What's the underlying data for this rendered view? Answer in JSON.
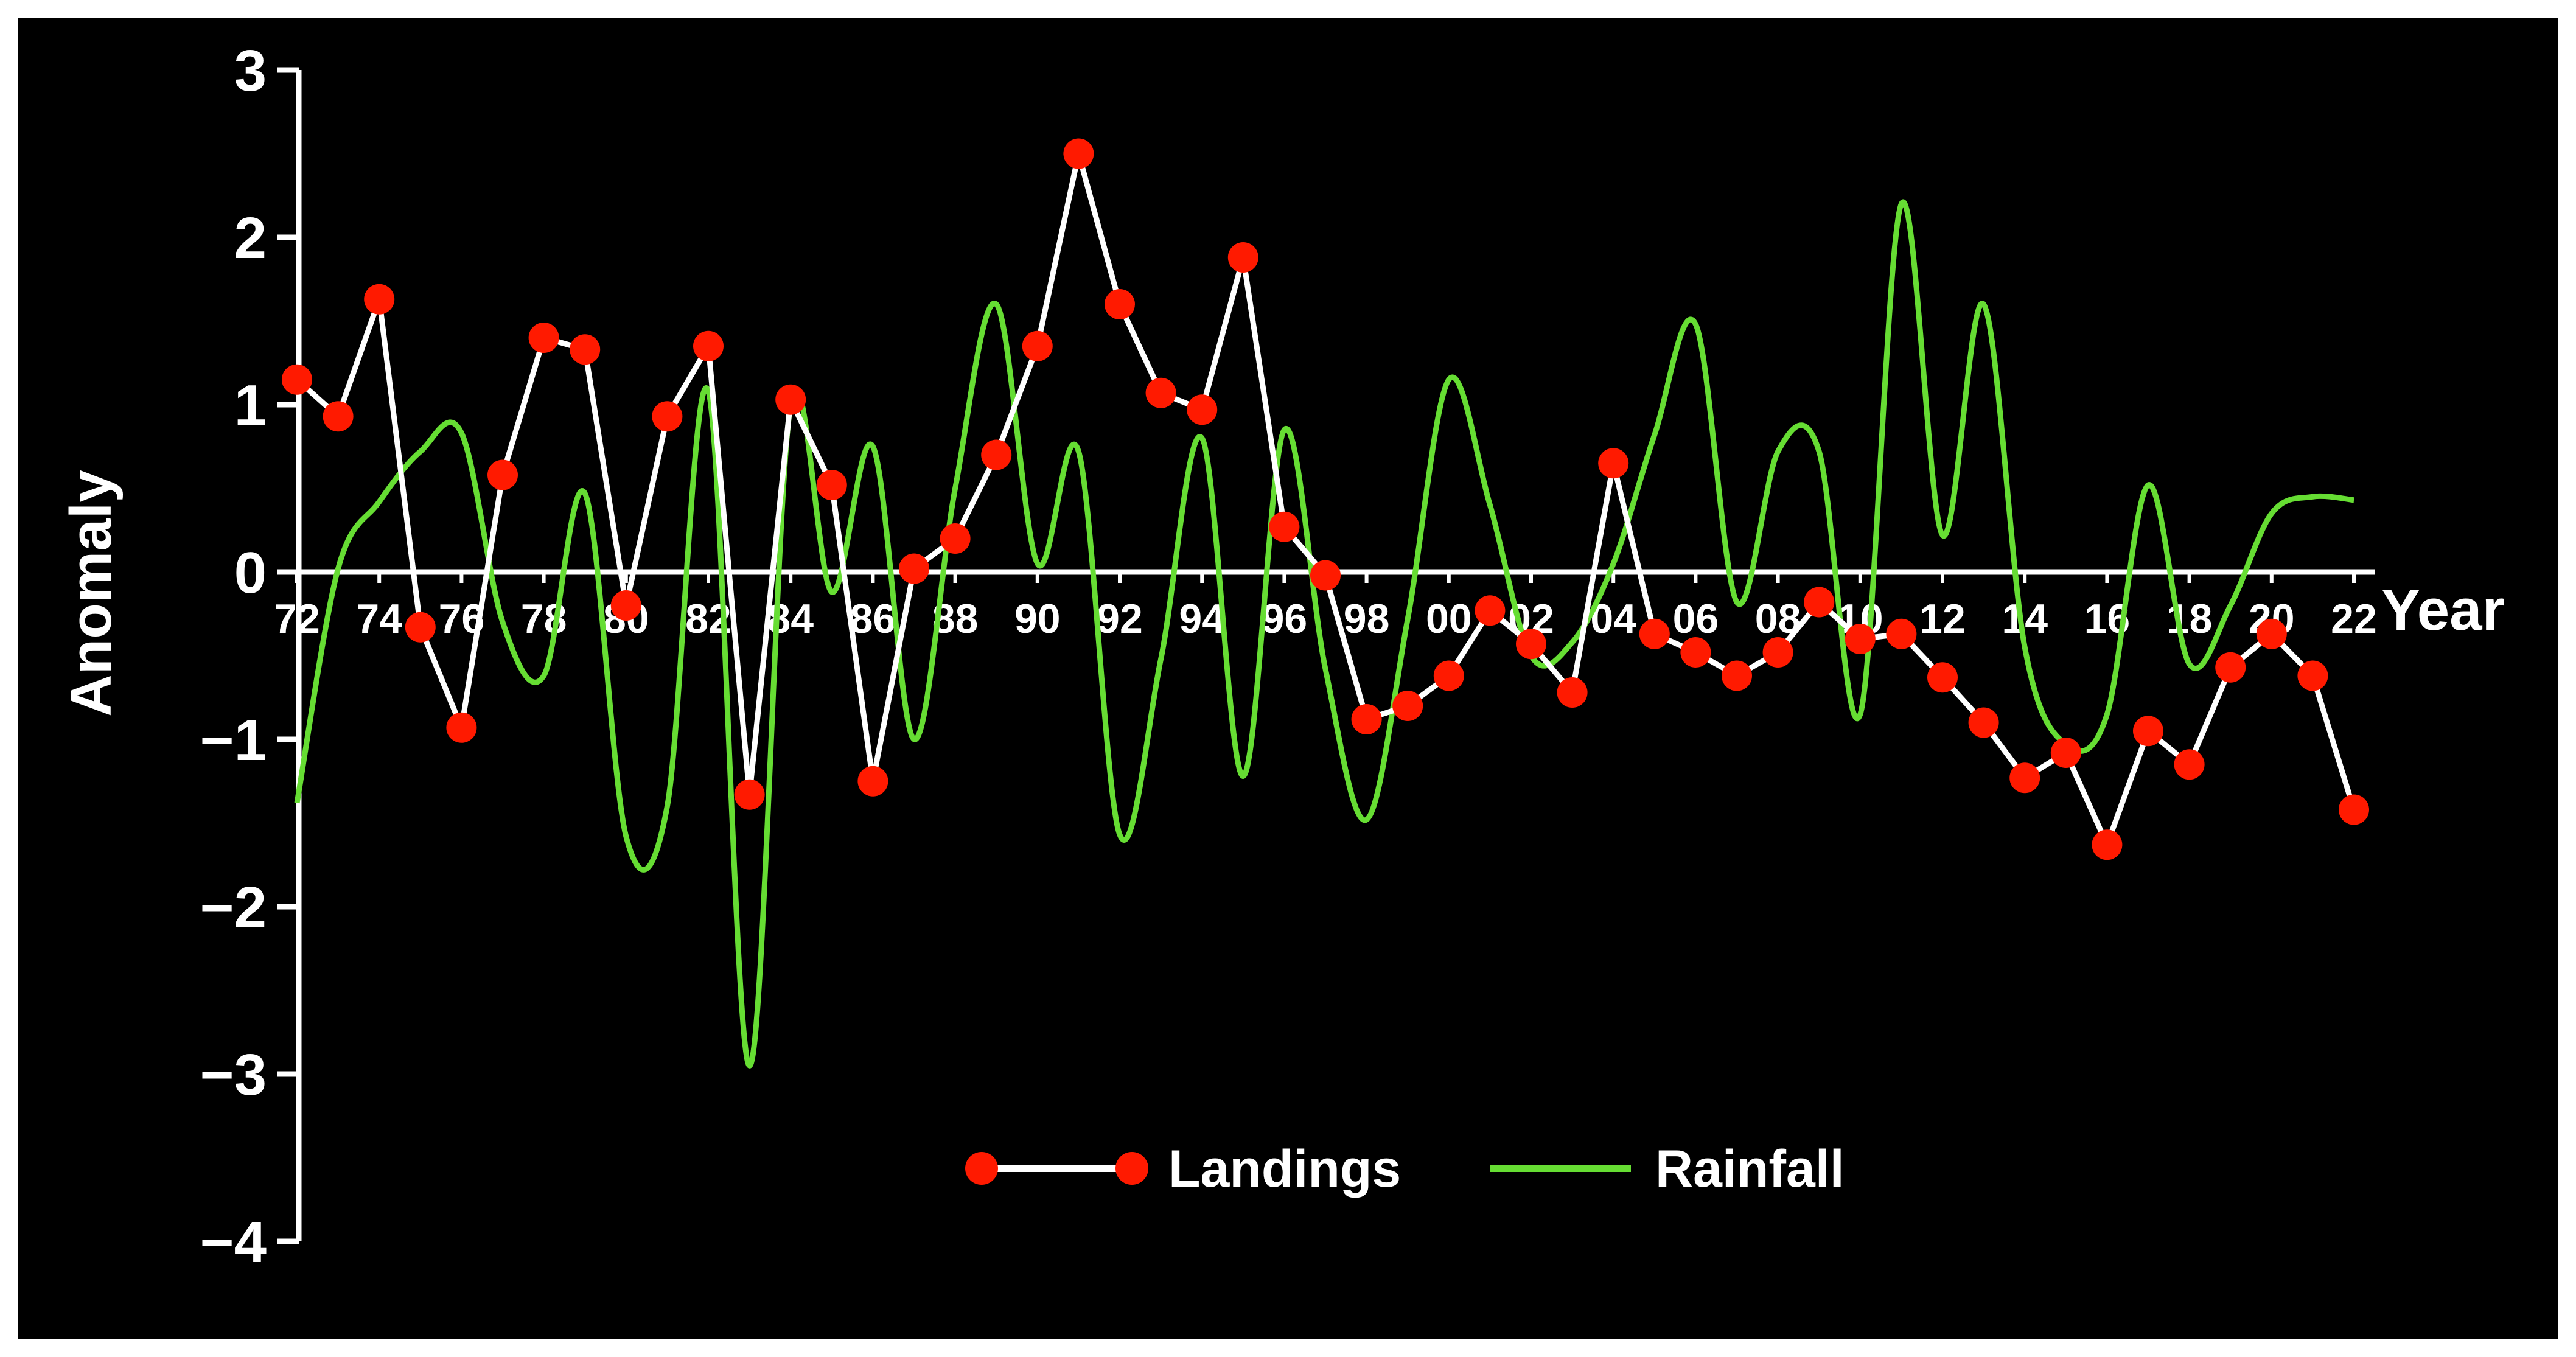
{
  "chart_data": {
    "type": "line",
    "title": "",
    "xlabel": "Year",
    "ylabel": "Anomaly",
    "ylim": [
      -4,
      3
    ],
    "xlim": [
      1972,
      2022
    ],
    "yticks": [
      "3",
      "2",
      "1",
      "0",
      "−1",
      "−2",
      "−3",
      "−4"
    ],
    "ytick_values": [
      3,
      2,
      1,
      0,
      -1,
      -2,
      -3,
      -4
    ],
    "xtick_labels": [
      "72",
      "74",
      "76",
      "78",
      "80",
      "82",
      "84",
      "86",
      "88",
      "90",
      "92",
      "94",
      "96",
      "98",
      "00",
      "02",
      "04",
      "06",
      "08",
      "10",
      "12",
      "14",
      "16",
      "18",
      "20",
      "22"
    ],
    "xtick_values": [
      1972,
      1974,
      1976,
      1978,
      1980,
      1982,
      1984,
      1986,
      1988,
      1990,
      1992,
      1994,
      1996,
      1998,
      2000,
      2002,
      2004,
      2006,
      2008,
      2010,
      2012,
      2014,
      2016,
      2018,
      2020,
      2022
    ],
    "legend_position": "bottom-center",
    "series": [
      {
        "name": "Landings",
        "style": "line-with-markers",
        "line_color": "#ffffff",
        "marker_color": "#ff1a00",
        "x": [
          1972,
          1973,
          1974,
          1975,
          1976,
          1977,
          1978,
          1979,
          1980,
          1981,
          1982,
          1983,
          1984,
          1985,
          1986,
          1987,
          1988,
          1989,
          1990,
          1991,
          1992,
          1993,
          1994,
          1995,
          1996,
          1997,
          1998,
          1999,
          2000,
          2001,
          2002,
          2003,
          2004,
          2005,
          2006,
          2007,
          2008,
          2009,
          2010,
          2011,
          2012,
          2013,
          2014,
          2015,
          2016,
          2017,
          2018,
          2019,
          2020,
          2021,
          2022
        ],
        "values": [
          1.15,
          0.93,
          1.63,
          -0.33,
          -0.93,
          0.58,
          1.4,
          1.33,
          -0.2,
          0.93,
          1.35,
          -1.33,
          1.03,
          0.52,
          -1.25,
          0.02,
          0.2,
          0.7,
          1.35,
          2.5,
          1.6,
          1.07,
          0.97,
          1.88,
          0.27,
          -0.02,
          -0.88,
          -0.8,
          -0.62,
          -0.23,
          -0.43,
          -0.72,
          0.65,
          -0.37,
          -0.48,
          -0.62,
          -0.48,
          -0.18,
          -0.4,
          -0.37,
          -0.63,
          -0.9,
          -1.23,
          -1.08,
          -1.63,
          -0.95,
          -1.15,
          -0.57,
          -0.37,
          -0.62,
          -1.42
        ]
      },
      {
        "name": "Rainfall",
        "style": "smooth-line",
        "line_color": "#66dd33",
        "x": [
          1972,
          1973,
          1974,
          1975,
          1976,
          1977,
          1978,
          1979,
          1980,
          1981,
          1982,
          1983,
          1984,
          1985,
          1986,
          1987,
          1988,
          1989,
          1990,
          1991,
          1992,
          1993,
          1994,
          1995,
          1996,
          1997,
          1998,
          1999,
          2000,
          2001,
          2002,
          2003,
          2004,
          2005,
          2006,
          2007,
          2008,
          2009,
          2010,
          2011,
          2012,
          2013,
          2014,
          2015,
          2016,
          2017,
          2018,
          2019,
          2020,
          2021,
          2022
        ],
        "values": [
          -1.38,
          0.02,
          0.42,
          0.72,
          0.83,
          -0.3,
          -0.62,
          0.47,
          -1.58,
          -1.4,
          1.08,
          -2.95,
          1.0,
          -0.12,
          0.75,
          -1.0,
          0.5,
          1.6,
          0.05,
          0.72,
          -1.57,
          -0.52,
          0.8,
          -1.22,
          0.85,
          -0.58,
          -1.48,
          -0.28,
          1.15,
          0.4,
          -0.5,
          -0.42,
          0.05,
          0.82,
          1.48,
          -0.18,
          0.72,
          0.72,
          -0.85,
          2.2,
          0.22,
          1.6,
          -0.45,
          -1.03,
          -0.85,
          0.52,
          -0.55,
          -0.2,
          0.35,
          0.45,
          0.43
        ]
      }
    ]
  }
}
